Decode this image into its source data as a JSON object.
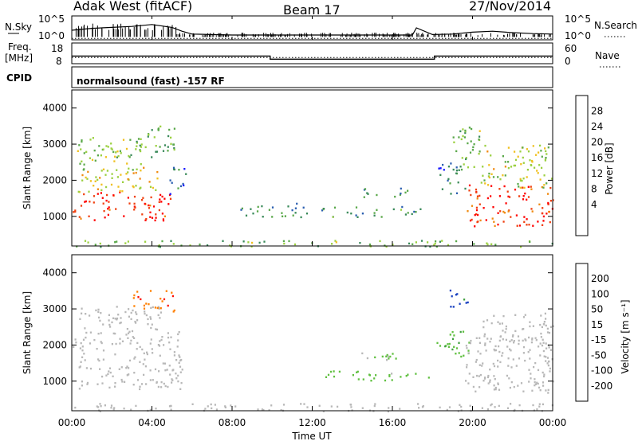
{
  "header": {
    "station": "Adak West (fitACF)",
    "beam": "Beam 17",
    "date": "27/Nov/2014"
  },
  "top_panels": {
    "nsky_label": "N.Sky",
    "nsky_ticks": [
      "10^5",
      "10^0"
    ],
    "nsearch_label": "N.Search",
    "nsearch_ticks": [
      "10^5",
      "10^0"
    ],
    "freq_label_line1": "Freq.",
    "freq_label_line2": "[MHz]",
    "freq_ticks": [
      "18",
      "8"
    ],
    "nave_label": "Nave",
    "nave_ticks": [
      "60",
      "0"
    ],
    "cpid_label": "CPID",
    "cpid_text": "normalsound (fast) -157 RF"
  },
  "colors": {
    "power": [
      "#1a1aff",
      "#2b5fb0",
      "#3a8a5a",
      "#5aa84a",
      "#9bd040",
      "#f0c020",
      "#f08a10",
      "#f04010",
      "#ff0000"
    ],
    "velocity": [
      "#ff1000",
      "#ff8000",
      "#ffb000",
      "#b8b8b8",
      "#b8b8b8",
      "#60c040",
      "#40a040",
      "#1840c0",
      "#1818a0"
    ],
    "ground": "#b8b8b8"
  },
  "colorbars": {
    "power": {
      "label": "Power [dB]",
      "ticks": [
        "28",
        "24",
        "20",
        "16",
        "12",
        "8",
        "4"
      ]
    },
    "velocity": {
      "label": "Velocity [m s⁻¹]",
      "ticks": [
        "200",
        "100",
        "50",
        "15",
        "-15",
        "-50",
        "-100",
        "-200"
      ]
    }
  },
  "x_axis": {
    "label": "Time UT",
    "ticks": [
      "00:00",
      "04:00",
      "08:00",
      "12:00",
      "16:00",
      "20:00",
      "00:00"
    ]
  },
  "chart_data": [
    {
      "type": "line",
      "panel": "N.Sky / N.Search",
      "y_scale": "log",
      "ylim_left": [
        "10^0",
        "10^5"
      ],
      "series": [
        {
          "name": "N.Sky",
          "x_hours": [
            0,
            1,
            2,
            3,
            4,
            5,
            5.5,
            6,
            8,
            10,
            12,
            14,
            16,
            17,
            17.2,
            18,
            19,
            20,
            21,
            22,
            23,
            24
          ],
          "values_log": [
            2.0,
            2.4,
            2.6,
            2.8,
            3.2,
            2.6,
            1.8,
            1.2,
            1.0,
            1.0,
            1.0,
            1.0,
            1.0,
            1.0,
            2.5,
            1.1,
            1.2,
            1.6,
            1.8,
            1.5,
            1.3,
            1.2
          ]
        },
        {
          "name": "N.Search",
          "x_hours": [
            0,
            24
          ],
          "values_log": [
            0.3,
            0.3
          ]
        }
      ]
    },
    {
      "type": "line",
      "panel": "Freq / Nave",
      "ylim_freq": [
        8,
        18
      ],
      "ylim_nave": [
        0,
        60
      ],
      "series": [
        {
          "name": "Freq. [MHz]",
          "x_hours": [
            0,
            9.9,
            9.9,
            18.1,
            18.1,
            24
          ],
          "values": [
            11.7,
            11.7,
            10.2,
            10.2,
            11.7,
            11.7
          ]
        },
        {
          "name": "Nave",
          "x_hours": [
            0,
            24
          ],
          "values": [
            18,
            18
          ]
        }
      ]
    },
    {
      "type": "heatmap",
      "panel": "Power",
      "xlabel": "Time UT",
      "ylabel": "Slant Range [km]",
      "xlim_hours": [
        0,
        24
      ],
      "ylim_km": [
        180,
        4500
      ],
      "y_ticks": [
        1000,
        2000,
        3000,
        4000
      ],
      "colorbar": "Power [dB]",
      "clim": [
        0,
        30
      ],
      "regions": [
        {
          "t": [
            0.0,
            4.9
          ],
          "r": [
            900,
            1700
          ],
          "level": 28
        },
        {
          "t": [
            0.3,
            4.5
          ],
          "r": [
            1700,
            2400
          ],
          "level": 18
        },
        {
          "t": [
            0.2,
            3.5
          ],
          "r": [
            2300,
            3200
          ],
          "level": 14
        },
        {
          "t": [
            3.2,
            5.2
          ],
          "r": [
            2600,
            3550
          ],
          "level": 12
        },
        {
          "t": [
            4.8,
            5.7
          ],
          "r": [
            1600,
            2400
          ],
          "level": 6
        },
        {
          "t": [
            8.4,
            11.8
          ],
          "r": [
            1000,
            1400
          ],
          "level": 8
        },
        {
          "t": [
            12.4,
            15.6
          ],
          "r": [
            1000,
            1300
          ],
          "level": 10
        },
        {
          "t": [
            14.2,
            16.8
          ],
          "r": [
            1550,
            1800
          ],
          "level": 8
        },
        {
          "t": [
            15.8,
            17.9
          ],
          "r": [
            1050,
            1300
          ],
          "level": 9
        },
        {
          "t": [
            18.2,
            19.6
          ],
          "r": [
            1650,
            2500
          ],
          "level": 6
        },
        {
          "t": [
            19.0,
            20.6
          ],
          "r": [
            2300,
            3500
          ],
          "level": 12
        },
        {
          "t": [
            19.6,
            24.0
          ],
          "r": [
            750,
            1900
          ],
          "level": 28
        },
        {
          "t": [
            20.4,
            24.0
          ],
          "r": [
            1800,
            3000
          ],
          "level": 16
        },
        {
          "t": [
            0.0,
            24.0
          ],
          "r": [
            180,
            350
          ],
          "level": 12
        }
      ]
    },
    {
      "type": "heatmap",
      "panel": "Velocity",
      "xlabel": "Time UT",
      "ylabel": "Slant Range [km]",
      "xlim_hours": [
        0,
        24
      ],
      "ylim_km": [
        180,
        4500
      ],
      "y_ticks": [
        1000,
        2000,
        3000,
        4000
      ],
      "colorbar": "Velocity [m s⁻¹]",
      "clim": [
        -250,
        250
      ],
      "regions": [
        {
          "t": [
            0.0,
            5.5
          ],
          "r": [
            800,
            2400
          ],
          "value": 0,
          "ground": true
        },
        {
          "t": [
            0.3,
            4.5
          ],
          "r": [
            2400,
            3100
          ],
          "value": 0,
          "ground": true
        },
        {
          "t": [
            3.0,
            5.1
          ],
          "r": [
            2950,
            3550
          ],
          "value": -200
        },
        {
          "t": [
            2.4,
            3.2
          ],
          "r": [
            2600,
            3000
          ],
          "value": -60
        },
        {
          "t": [
            12.4,
            15.6
          ],
          "r": [
            1000,
            1300
          ],
          "value": 60
        },
        {
          "t": [
            14.2,
            16.8
          ],
          "r": [
            1550,
            1800
          ],
          "value": 50
        },
        {
          "t": [
            15.8,
            17.9
          ],
          "r": [
            1050,
            1300
          ],
          "value": 60
        },
        {
          "t": [
            18.2,
            19.8
          ],
          "r": [
            1650,
            2500
          ],
          "value": 80
        },
        {
          "t": [
            18.8,
            19.8
          ],
          "r": [
            3000,
            3550
          ],
          "value": 180
        },
        {
          "t": [
            19.6,
            24.0
          ],
          "r": [
            700,
            2300
          ],
          "value": 0,
          "ground": true
        },
        {
          "t": [
            20.4,
            24.0
          ],
          "r": [
            1800,
            2900
          ],
          "value": 0,
          "ground": true
        },
        {
          "t": [
            0.0,
            24.0
          ],
          "r": [
            180,
            400
          ],
          "value": -60
        }
      ]
    }
  ]
}
